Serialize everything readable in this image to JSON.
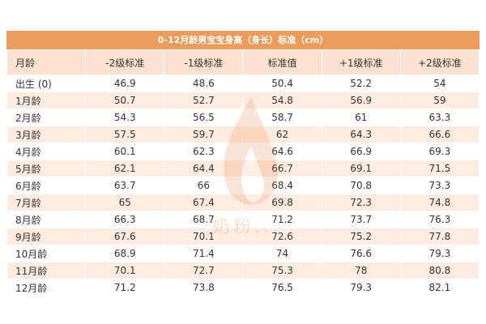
{
  "title": "0-12月龄男宝宝身高（身长）标准（cm）",
  "columns": [
    "月龄",
    "-2级标准",
    "-1级标准",
    "标准值",
    "+1级标准",
    "+2级标准"
  ],
  "rows": [
    [
      "出生 (0)",
      "46.9",
      "48.6",
      "50.4",
      "52.2",
      "54"
    ],
    [
      "1月龄",
      "50.7",
      "52.7",
      "54.8",
      "56.9",
      "59"
    ],
    [
      "2月龄",
      "54.3",
      "56.5",
      "58.7",
      "61",
      "63.3"
    ],
    [
      "3月龄",
      "57.5",
      "59.7",
      "62",
      "64.3",
      "66.6"
    ],
    [
      "4月龄",
      "60.1",
      "62.3",
      "64.6",
      "66.9",
      "69.3"
    ],
    [
      "5月龄",
      "62.1",
      "64.4",
      "66.7",
      "69.1",
      "71.5"
    ],
    [
      "6月龄",
      "63.7",
      "66",
      "68.4",
      "70.8",
      "73.3"
    ],
    [
      "7月龄",
      "65",
      "67.4",
      "69.8",
      "72.3",
      "74.8"
    ],
    [
      "8月龄",
      "66.3",
      "68.7",
      "71.2",
      "73.7",
      "76.3"
    ],
    [
      "9月龄",
      "67.6",
      "70.1",
      "72.6",
      "75.2",
      "77.8"
    ],
    [
      "10月龄",
      "68.9",
      "71.4",
      "74",
      "76.6",
      "79.3"
    ],
    [
      "11月龄",
      "70.1",
      "72.7",
      "75.3",
      "78",
      "80.8"
    ],
    [
      "12月龄",
      "71.2",
      "73.8",
      "76.5",
      "79.3",
      "82.1"
    ]
  ],
  "watermark": {
    "text": "奶粉...",
    "color": "#e96a2a"
  },
  "colors": {
    "title_bg": "#ec9b5a",
    "header_bg": "#fde3cf",
    "stripe": "#fdece1"
  }
}
